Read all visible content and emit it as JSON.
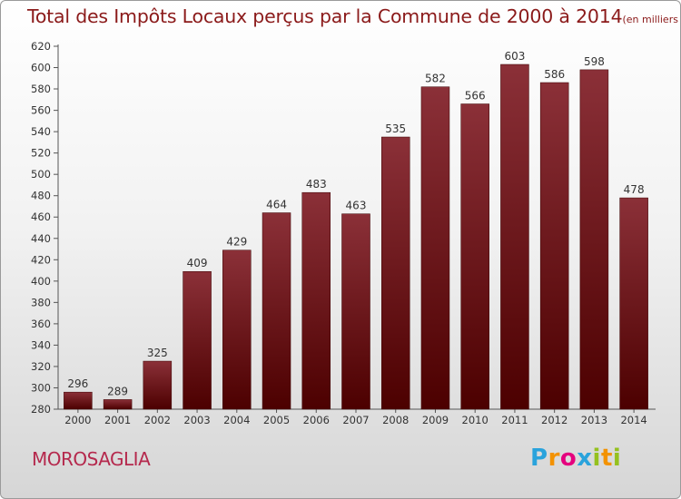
{
  "header": {
    "title": "Total des Impôts Locaux perçus par la Commune de 2000 à 2014",
    "subtitle": "(en milliers d'€)"
  },
  "commune_name": "MOROSAGLIA",
  "logo": {
    "text": "Proxiti",
    "letters": [
      "P",
      "r",
      "o",
      "x",
      "i",
      "t",
      "i"
    ],
    "letter_colors": [
      "#2aa3dc",
      "#f39200",
      "#e5007e",
      "#2aa3dc",
      "#95c11f",
      "#f39200",
      "#95c11f"
    ]
  },
  "colors": {
    "title": "#8b1a1a",
    "bar_top": "#8b3038",
    "bar_bottom": "#4c0000",
    "commune": "#b5294d"
  },
  "chart_data": {
    "type": "bar",
    "title": "Total des Impôts Locaux perçus par la Commune de 2000 à 2014",
    "subtitle": "(en milliers d'€)",
    "categories": [
      "2000",
      "2001",
      "2002",
      "2003",
      "2004",
      "2005",
      "2006",
      "2007",
      "2008",
      "2009",
      "2010",
      "2011",
      "2012",
      "2013",
      "2014"
    ],
    "values": [
      296,
      289,
      325,
      409,
      429,
      464,
      483,
      463,
      535,
      582,
      566,
      603,
      586,
      598,
      478
    ],
    "ylim": [
      280,
      620
    ],
    "ytick_step": 20,
    "xlabel": "",
    "ylabel": "",
    "grid": false
  }
}
